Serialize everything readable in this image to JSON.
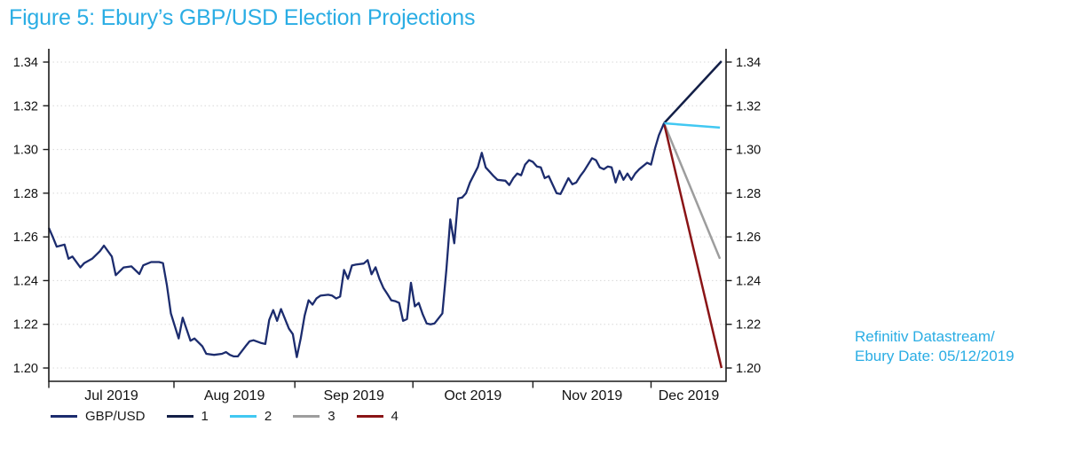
{
  "figure": {
    "title": "Figure 5: Ebury’s GBP/USD Election Projections",
    "title_color": "#2aade4"
  },
  "source_note": {
    "line1": "Refinitiv Datastream/",
    "line2": "Ebury Date: 05/12/2019",
    "color": "#2aade4"
  },
  "chart_data": {
    "type": "line",
    "title": "Figure 5: Ebury’s GBP/USD Election Projections",
    "xlabel": "",
    "ylabel": "",
    "x_unit": "days since 1 Jul 2019",
    "x_domain": [
      0,
      172.2
    ],
    "ylim": [
      1.2,
      1.34
    ],
    "y_ticks": [
      1.2,
      1.22,
      1.24,
      1.26,
      1.28,
      1.3,
      1.32,
      1.34
    ],
    "y_tick_side": "both",
    "grid": "horizontal-dotted",
    "grid_color": "#d8d8d8",
    "axis_color": "#1a1a1a",
    "legend_position": "bottom-left",
    "month_tick_days": [
      0,
      31.8,
      62.5,
      92.5,
      123,
      153
    ],
    "month_labels": [
      "Jul 2019",
      "Aug 2019",
      "Sep 2019",
      "Oct 2019",
      "Nov 2019",
      "Dec 2019"
    ],
    "series": [
      {
        "name": "GBP/USD",
        "color": "#1c2c6e",
        "role": "history",
        "points": [
          [
            0,
            1.2641
          ],
          [
            1,
            1.26
          ],
          [
            2,
            1.2555
          ],
          [
            3,
            1.256
          ],
          [
            4,
            1.2565
          ],
          [
            5,
            1.25
          ],
          [
            6,
            1.251
          ],
          [
            8,
            1.246
          ],
          [
            9,
            1.248
          ],
          [
            10,
            1.249
          ],
          [
            11,
            1.25
          ],
          [
            13,
            1.2535
          ],
          [
            14,
            1.256
          ],
          [
            16,
            1.251
          ],
          [
            17,
            1.2425
          ],
          [
            19,
            1.246
          ],
          [
            21,
            1.2465
          ],
          [
            23,
            1.243
          ],
          [
            24,
            1.247
          ],
          [
            26,
            1.2485
          ],
          [
            28,
            1.2485
          ],
          [
            29,
            1.248
          ],
          [
            30,
            1.238
          ],
          [
            31,
            1.225
          ],
          [
            33,
            1.2135
          ],
          [
            34,
            1.223
          ],
          [
            36,
            1.2125
          ],
          [
            37,
            1.2135
          ],
          [
            39,
            1.21
          ],
          [
            40,
            1.2065
          ],
          [
            42,
            1.206
          ],
          [
            44,
            1.2065
          ],
          [
            45,
            1.2073
          ],
          [
            46,
            1.206
          ],
          [
            47,
            1.2053
          ],
          [
            48,
            1.2053
          ],
          [
            50,
            1.21
          ],
          [
            51,
            1.2122
          ],
          [
            52,
            1.2127
          ],
          [
            54,
            1.2114
          ],
          [
            55,
            1.211
          ],
          [
            56,
            1.222
          ],
          [
            57,
            1.2265
          ],
          [
            58,
            1.2216
          ],
          [
            59,
            1.227
          ],
          [
            61,
            1.218
          ],
          [
            62,
            1.2155
          ],
          [
            63,
            1.205
          ],
          [
            64,
            1.2135
          ],
          [
            65,
            1.224
          ],
          [
            66,
            1.231
          ],
          [
            67,
            1.229
          ],
          [
            68,
            1.2318
          ],
          [
            69,
            1.2331
          ],
          [
            71,
            1.2335
          ],
          [
            72,
            1.2331
          ],
          [
            73,
            1.2318
          ],
          [
            74,
            1.2327
          ],
          [
            75,
            1.2449
          ],
          [
            76,
            1.2408
          ],
          [
            77,
            1.2469
          ],
          [
            78,
            1.2473
          ],
          [
            80,
            1.2478
          ],
          [
            81,
            1.2494
          ],
          [
            82,
            1.2429
          ],
          [
            83,
            1.2461
          ],
          [
            84,
            1.2408
          ],
          [
            85,
            1.2367
          ],
          [
            86,
            1.2339
          ],
          [
            87,
            1.231
          ],
          [
            88,
            1.2306
          ],
          [
            89,
            1.2298
          ],
          [
            90,
            1.2216
          ],
          [
            91,
            1.2224
          ],
          [
            92,
            1.239
          ],
          [
            93,
            1.2282
          ],
          [
            94,
            1.2298
          ],
          [
            95,
            1.2245
          ],
          [
            96,
            1.2204
          ],
          [
            97,
            1.22
          ],
          [
            98,
            1.2204
          ],
          [
            100,
            1.225
          ],
          [
            101,
            1.245
          ],
          [
            102,
            1.268
          ],
          [
            103,
            1.2571
          ],
          [
            104,
            1.2776
          ],
          [
            105,
            1.278
          ],
          [
            106,
            1.28
          ],
          [
            107,
            1.2849
          ],
          [
            109,
            1.292
          ],
          [
            110,
            1.2985
          ],
          [
            111,
            1.2918
          ],
          [
            112,
            1.2898
          ],
          [
            113,
            1.2878
          ],
          [
            114,
            1.2861
          ],
          [
            116,
            1.2857
          ],
          [
            117,
            1.2837
          ],
          [
            118,
            1.2869
          ],
          [
            119,
            1.289
          ],
          [
            120,
            1.2882
          ],
          [
            121,
            1.2931
          ],
          [
            122,
            1.2951
          ],
          [
            123,
            1.2943
          ],
          [
            124,
            1.2922
          ],
          [
            125,
            1.2918
          ],
          [
            126,
            1.2869
          ],
          [
            127,
            1.2878
          ],
          [
            129,
            1.28
          ],
          [
            130,
            1.2796
          ],
          [
            132,
            1.2869
          ],
          [
            133,
            1.2841
          ],
          [
            134,
            1.2849
          ],
          [
            135,
            1.2878
          ],
          [
            136,
            1.2902
          ],
          [
            138,
            1.296
          ],
          [
            139,
            1.2951
          ],
          [
            140,
            1.2918
          ],
          [
            141,
            1.291
          ],
          [
            142,
            1.2922
          ],
          [
            143,
            1.2918
          ],
          [
            144,
            1.2849
          ],
          [
            145,
            1.2902
          ],
          [
            146,
            1.2861
          ],
          [
            147,
            1.289
          ],
          [
            148,
            1.2861
          ],
          [
            149,
            1.289
          ],
          [
            150,
            1.291
          ],
          [
            152,
            1.2939
          ],
          [
            153,
            1.2931
          ],
          [
            154,
            1.3004
          ],
          [
            155,
            1.3065
          ],
          [
            156.3,
            1.312
          ]
        ]
      },
      {
        "name": "1",
        "color": "#131f47",
        "role": "projection",
        "points": [
          [
            156.3,
            1.312
          ],
          [
            170.9,
            1.3404
          ]
        ]
      },
      {
        "name": "2",
        "color": "#41c8f2",
        "role": "projection",
        "points": [
          [
            156.3,
            1.312
          ],
          [
            170.5,
            1.31
          ]
        ]
      },
      {
        "name": "3",
        "color": "#9d9d9d",
        "role": "projection",
        "points": [
          [
            156.3,
            1.312
          ],
          [
            170.5,
            1.25
          ]
        ]
      },
      {
        "name": "4",
        "color": "#8a1416",
        "role": "projection",
        "points": [
          [
            156.3,
            1.312
          ],
          [
            170.9,
            1.2
          ]
        ]
      }
    ]
  }
}
